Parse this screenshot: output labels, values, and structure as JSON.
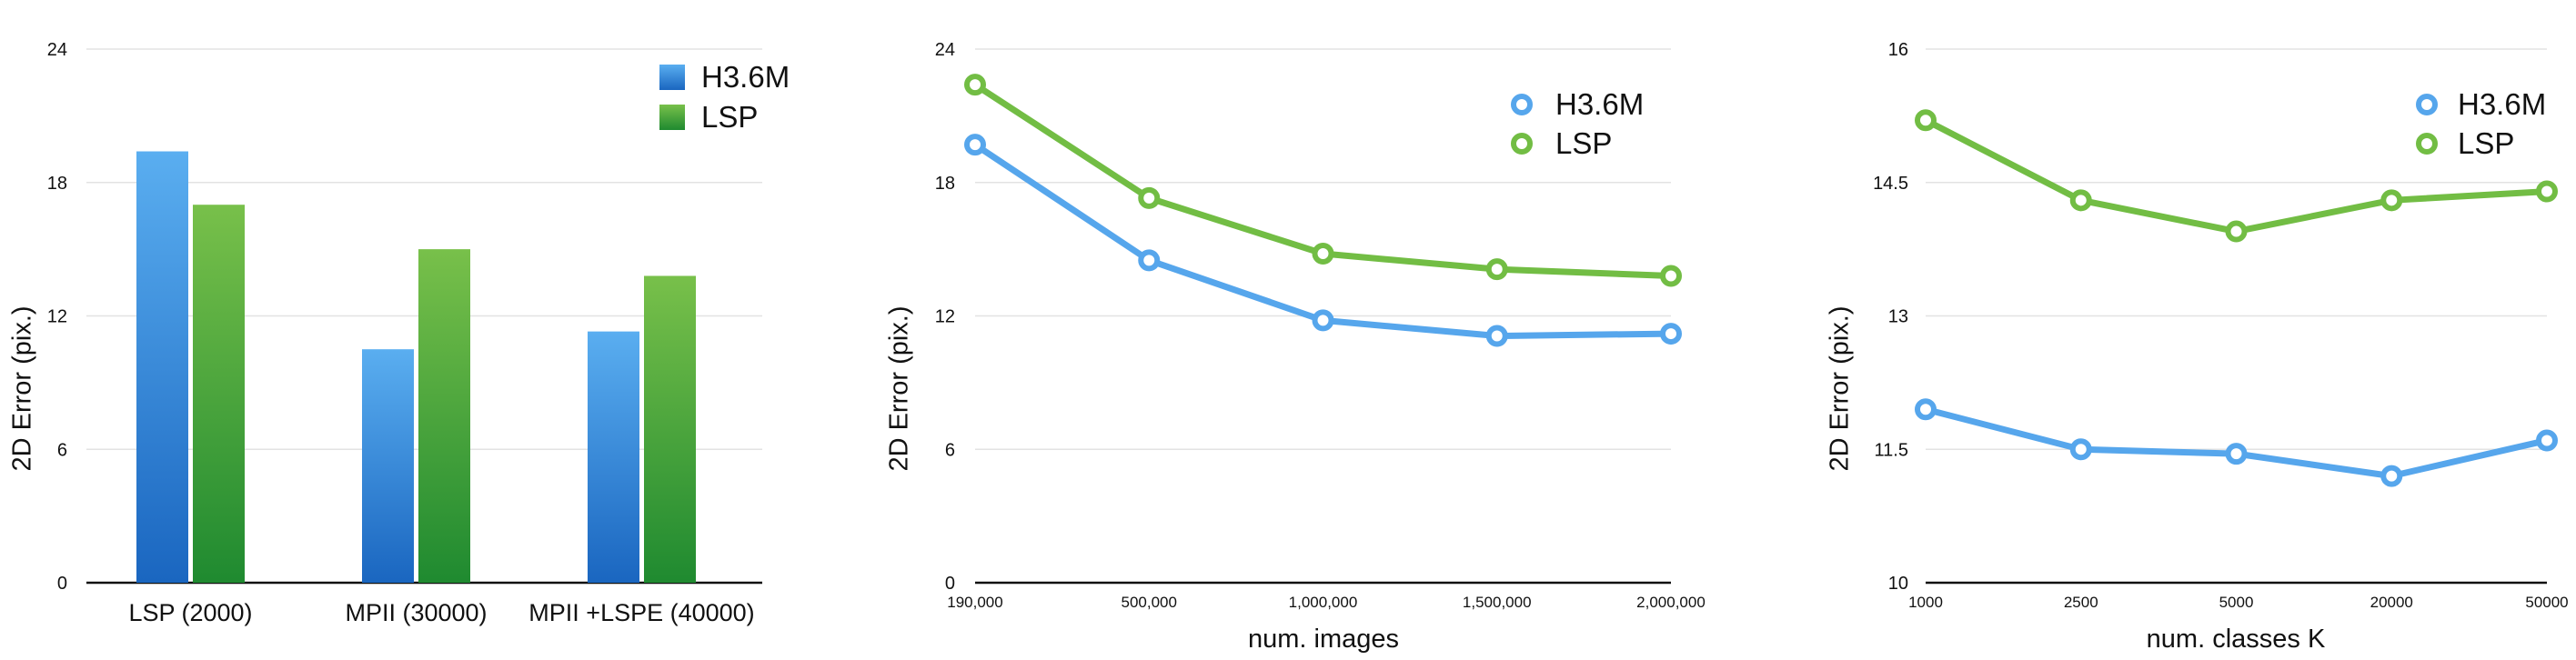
{
  "chart_data": [
    {
      "type": "bar",
      "ylabel": "2D Error (pix.)",
      "xlabel": "",
      "ylim": [
        0,
        24
      ],
      "yticks": [
        "0",
        "6",
        "12",
        "18",
        "24"
      ],
      "categories": [
        "LSP (2000)",
        "MPII (30000)",
        "MPII +LSPE (40000)"
      ],
      "series": [
        {
          "name": "H3.6M",
          "values": [
            19.4,
            10.5,
            11.3
          ]
        },
        {
          "name": "LSP",
          "values": [
            17.0,
            15.0,
            13.8
          ]
        }
      ],
      "legend": "top-right",
      "grid": true
    },
    {
      "type": "line",
      "ylabel": "2D Error (pix.)",
      "xlabel": "num. images",
      "ylim": [
        0,
        24
      ],
      "yticks": [
        "0",
        "6",
        "12",
        "18",
        "24"
      ],
      "categories": [
        "190,000",
        "500,000",
        "1,000,000",
        "1,500,000",
        "2,000,000"
      ],
      "series": [
        {
          "name": "H3.6M",
          "values": [
            19.7,
            14.5,
            11.8,
            11.1,
            11.2
          ]
        },
        {
          "name": "LSP",
          "values": [
            22.4,
            17.3,
            14.8,
            14.1,
            13.8
          ]
        }
      ],
      "legend": "top-right",
      "grid": true
    },
    {
      "type": "line",
      "ylabel": "2D Error (pix.)",
      "xlabel": "num. classes K",
      "ylim": [
        10,
        16
      ],
      "yticks": [
        "10",
        "11.5",
        "13",
        "14.5",
        "16"
      ],
      "categories": [
        "1000",
        "2500",
        "5000",
        "20000",
        "50000"
      ],
      "series": [
        {
          "name": "H3.6M",
          "values": [
            11.95,
            11.5,
            11.45,
            11.2,
            11.6
          ]
        },
        {
          "name": "LSP",
          "values": [
            15.2,
            14.3,
            13.95,
            14.3,
            14.4
          ]
        }
      ],
      "legend": "top-right",
      "grid": true
    }
  ],
  "colors": {
    "blue_dark": "#1a66c0",
    "blue_light": "#5aaef0",
    "green_dark": "#1f8a30",
    "green_light": "#78c04a",
    "line_blue": "#56a6ec",
    "line_green": "#72bd44"
  }
}
